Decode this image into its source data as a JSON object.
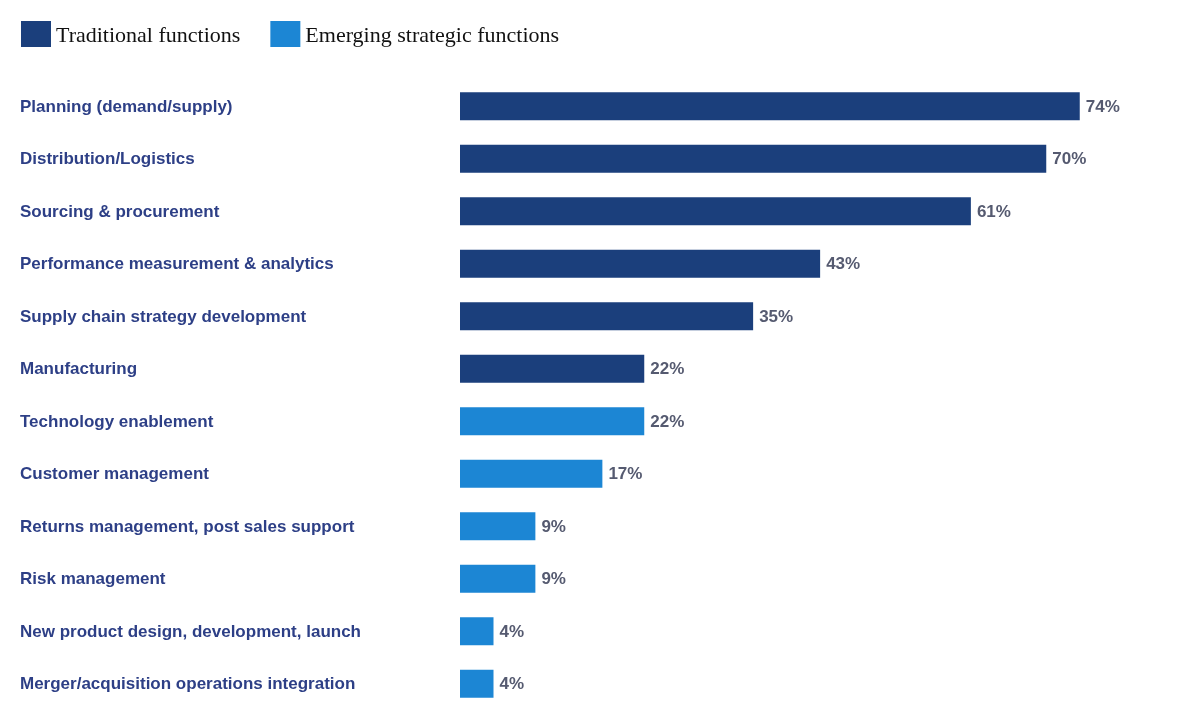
{
  "chart_data": {
    "type": "bar",
    "orientation": "horizontal",
    "legend": "top left",
    "categories": [
      "Planning (demand/supply)",
      "Distribution/Logistics",
      "Sourcing & procurement",
      "Performance measurement & analytics",
      "Supply chain strategy development",
      "Manufacturing",
      "Technology enablement",
      "Customer management",
      "Returns management, post sales support",
      "Risk management",
      "New product design, development, launch",
      "Merger/acquisition operations integration"
    ],
    "series": [
      {
        "name": "Traditional functions",
        "color": "#1b3f7c",
        "values": [
          74,
          70,
          61,
          43,
          35,
          22,
          null,
          null,
          null,
          null,
          null,
          null
        ],
        "value_labels": [
          "74%",
          "70%",
          "61%",
          "43%",
          "35%",
          "22%",
          null,
          null,
          null,
          null,
          null,
          null
        ]
      },
      {
        "name": "Emerging strategic functions",
        "color": "#1c86d4",
        "values": [
          null,
          null,
          null,
          null,
          null,
          null,
          22,
          17,
          9,
          9,
          4,
          4
        ],
        "value_labels": [
          null,
          null,
          null,
          null,
          null,
          null,
          "22%",
          "17%",
          "9%",
          "9%",
          "4%",
          "4%"
        ]
      }
    ]
  }
}
